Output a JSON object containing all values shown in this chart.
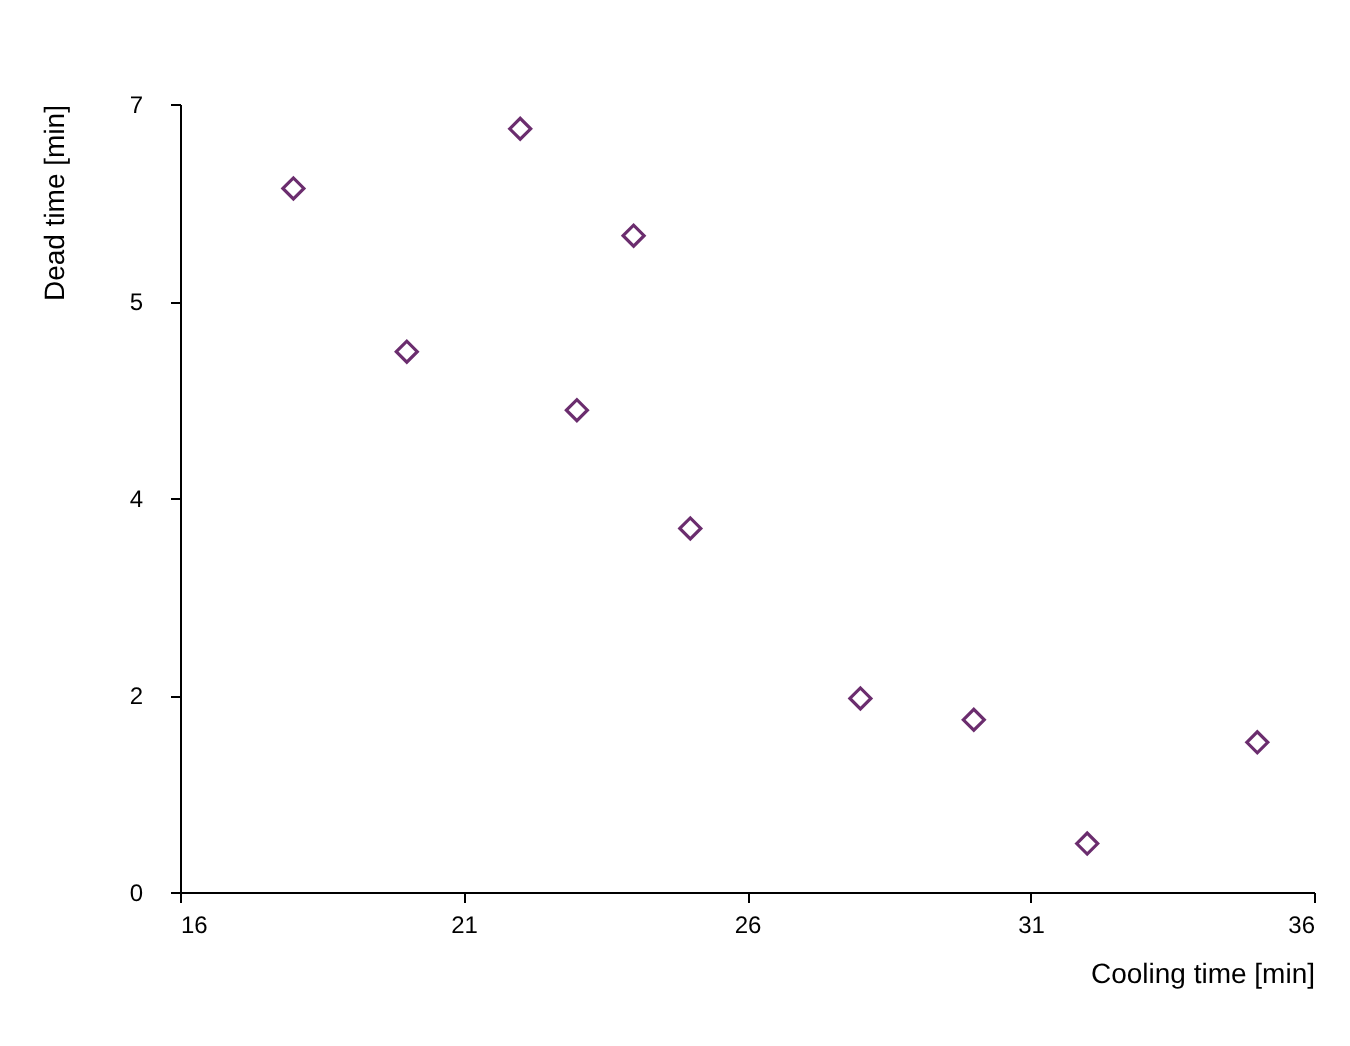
{
  "chart_data": {
    "type": "scatter",
    "xlabel": "Cooling time [min]",
    "ylabel": "Dead time [min]",
    "x": [
      18,
      20,
      22,
      23,
      24,
      25,
      28,
      30,
      32,
      35
    ],
    "series": [
      {
        "color": "#6b2d6e",
        "values": [
          6.25,
          4.8,
          6.78,
          4.28,
          5.83,
          3.23,
          1.72,
          1.53,
          0.43,
          1.33
        ]
      }
    ],
    "xlim": [
      16,
      36
    ],
    "xticks": [
      16,
      21,
      26,
      31,
      36
    ],
    "ylim": [
      0,
      7
    ],
    "yticks": [
      0,
      {
        "value": 1.75,
        "label": "2"
      },
      {
        "value": 3.5,
        "label": "4"
      },
      {
        "value": 5.25,
        "label": "5"
      },
      7
    ],
    "marker": "diamond",
    "grid": false,
    "legend": false
  }
}
